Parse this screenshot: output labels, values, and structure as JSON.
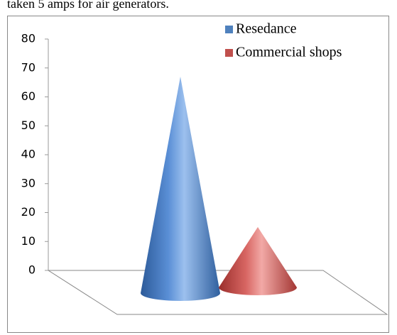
{
  "caption": "taken 5 amps for air generators.",
  "chart_data": {
    "type": "cone",
    "categories": [
      null
    ],
    "series": [
      {
        "name": "Resedance",
        "color": "#4f81bd",
        "values": [
          67
        ]
      },
      {
        "name": "Commercial shops",
        "color": "#c0504d",
        "values": [
          15
        ]
      }
    ],
    "ylim": [
      0,
      80
    ],
    "yticks": [
      0,
      10,
      20,
      30,
      40,
      50,
      60,
      70,
      80
    ],
    "legend": "top-right"
  }
}
